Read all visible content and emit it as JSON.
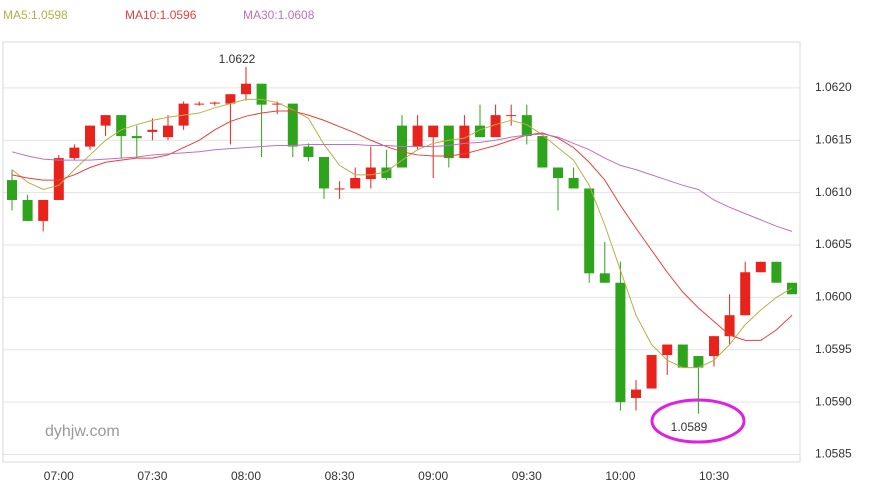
{
  "chart_data": {
    "type": "candlestick",
    "watermark": "dyhjw.com",
    "annotations": [
      "1.0622",
      "1.0589"
    ],
    "up_color": "#e8231b",
    "down_color": "#2ea31c",
    "categories": [
      null,
      null,
      null,
      "07:00",
      null,
      null,
      null,
      null,
      null,
      "07:30",
      null,
      null,
      null,
      null,
      null,
      "08:00",
      null,
      null,
      null,
      null,
      null,
      "08:30",
      null,
      null,
      null,
      null,
      null,
      "09:00",
      null,
      null,
      null,
      null,
      null,
      "09:30",
      null,
      null,
      null,
      null,
      null,
      "10:00",
      null,
      null,
      null,
      null,
      null,
      "10:30",
      null,
      null,
      null,
      null,
      null
    ],
    "open": [
      1.06112,
      1.06093,
      1.06073,
      1.06093,
      1.06133,
      1.06144,
      1.06164,
      1.06174,
      1.06154,
      1.06158,
      1.06153,
      1.06164,
      1.06185,
      1.06185,
      1.06185,
      1.06194,
      1.06204,
      1.06185,
      1.06185,
      1.06144,
      1.06134,
      1.06104,
      1.06104,
      1.06113,
      1.06124,
      1.06164,
      1.06144,
      1.06153,
      1.06164,
      1.06133,
      1.06164,
      1.06153,
      1.06174,
      1.06174,
      1.06154,
      1.06124,
      1.06114,
      1.06104,
      1.06023,
      1.06014,
      1.05904,
      1.05913,
      1.05945,
      1.05955,
      1.05944,
      1.05944,
      1.05963,
      1.05983,
      1.06024,
      1.06034,
      1.06014
    ],
    "high": [
      1.06122,
      1.06098,
      1.06093,
      1.06136,
      1.06146,
      1.06164,
      1.06174,
      1.06174,
      1.06164,
      1.06171,
      1.06174,
      1.06187,
      1.06187,
      1.06187,
      1.06194,
      1.0622,
      1.06204,
      1.06187,
      1.06185,
      1.06147,
      1.06134,
      1.06111,
      1.06124,
      1.06144,
      1.06141,
      1.06174,
      1.06174,
      1.06164,
      1.06164,
      1.06174,
      1.06184,
      1.06184,
      1.06184,
      1.06184,
      1.06154,
      1.06124,
      1.06124,
      1.06104,
      1.06053,
      1.06034,
      1.05921,
      1.05945,
      1.05955,
      1.05955,
      1.05944,
      1.05963,
      1.06003,
      1.06034,
      1.06034,
      1.06034,
      1.06014
    ],
    "low": [
      1.06083,
      1.06073,
      1.06063,
      1.06093,
      1.06131,
      1.06141,
      1.06154,
      1.06133,
      1.06133,
      1.0615,
      1.0615,
      1.0616,
      1.06183,
      1.06183,
      1.06146,
      1.06188,
      1.06134,
      1.06175,
      1.06134,
      1.0613,
      1.06094,
      1.06094,
      1.06104,
      1.06104,
      1.06112,
      1.06124,
      1.06141,
      1.06114,
      1.06124,
      1.06133,
      1.06153,
      1.06153,
      1.06164,
      1.06146,
      1.06124,
      1.06083,
      1.06104,
      1.06014,
      1.06014,
      1.05892,
      1.05892,
      1.05913,
      1.05926,
      1.05933,
      1.05889,
      1.05934,
      1.05955,
      1.05983,
      1.06024,
      1.06014,
      1.06003
    ],
    "close": [
      1.06093,
      1.06073,
      1.06093,
      1.06133,
      1.06143,
      1.06164,
      1.06174,
      1.06154,
      1.06152,
      1.0616,
      1.06164,
      1.06185,
      1.06185,
      1.06186,
      1.06194,
      1.06204,
      1.06184,
      1.06185,
      1.06144,
      1.06134,
      1.06104,
      1.06104,
      1.06114,
      1.06124,
      1.06114,
      1.06124,
      1.06164,
      1.06164,
      1.06133,
      1.06164,
      1.06153,
      1.06174,
      1.06174,
      1.06154,
      1.06124,
      1.06114,
      1.06104,
      1.06023,
      1.06014,
      1.059,
      1.05912,
      1.05945,
      1.05955,
      1.05933,
      1.05933,
      1.05963,
      1.05983,
      1.06024,
      1.06034,
      1.06014,
      1.06003
    ],
    "series": [
      {
        "name": "MA5:1.0598",
        "color": "#b5b04a",
        "values": [
          1.06122,
          1.0611,
          1.06103,
          1.06107,
          1.06122,
          1.06136,
          1.0615,
          1.0616,
          1.06165,
          1.06169,
          1.06172,
          1.06174,
          1.06176,
          1.06181,
          1.06185,
          1.06189,
          1.06189,
          1.06186,
          1.06179,
          1.06171,
          1.06146,
          1.06126,
          1.06117,
          1.06117,
          1.0612,
          1.06131,
          1.06141,
          1.06147,
          1.0615,
          1.06152,
          1.0616,
          1.06165,
          1.06169,
          1.06165,
          1.06155,
          1.06143,
          1.06131,
          1.06107,
          1.06069,
          1.06026,
          1.05983,
          1.05955,
          1.0594,
          1.05933,
          1.05933,
          1.0594,
          1.05955,
          1.05974,
          1.05988,
          1.06,
          1.06009
        ]
      },
      {
        "name": "MA10:1.0596",
        "color": "#e8403a",
        "values": [
          1.06117,
          1.06114,
          1.06112,
          1.06112,
          1.06117,
          1.06124,
          1.06129,
          1.06131,
          1.06133,
          1.06133,
          1.06136,
          1.06143,
          1.0615,
          1.0616,
          1.06168,
          1.06173,
          1.06176,
          1.06178,
          1.06178,
          1.06174,
          1.06169,
          1.06163,
          1.06157,
          1.0615,
          1.06144,
          1.06139,
          1.06136,
          1.06135,
          1.06135,
          1.06137,
          1.06141,
          1.06145,
          1.0615,
          1.06155,
          1.06157,
          1.06152,
          1.06143,
          1.06129,
          1.06112,
          1.06088,
          1.06066,
          1.06045,
          1.06024,
          1.06005,
          1.0599,
          1.05977,
          1.05964,
          1.05959,
          1.05959,
          1.05969,
          1.05983
        ]
      },
      {
        "name": "MA30:1.0608",
        "color": "#c070c0",
        "values": [
          1.06139,
          1.06135,
          1.06132,
          1.06131,
          1.06131,
          1.06131,
          1.06132,
          1.06133,
          1.06134,
          1.06136,
          1.06137,
          1.06138,
          1.06139,
          1.06141,
          1.06142,
          1.06143,
          1.06144,
          1.06145,
          1.06145,
          1.06146,
          1.06146,
          1.06146,
          1.06146,
          1.06145,
          1.06145,
          1.06144,
          1.06144,
          1.06144,
          1.06145,
          1.06147,
          1.06148,
          1.0615,
          1.06153,
          1.06155,
          1.06156,
          1.06153,
          1.06147,
          1.06141,
          1.06133,
          1.06126,
          1.06122,
          1.06117,
          1.06112,
          1.06107,
          1.06103,
          1.06093,
          1.06086,
          1.0608,
          1.06074,
          1.06068,
          1.06063
        ]
      }
    ],
    "ylim": [
      1.0584,
      1.0624
    ],
    "yticks": [
      {
        "value": 1.062,
        "label": "1.0620"
      },
      {
        "value": 1.0615,
        "label": "1.0615"
      },
      {
        "value": 1.061,
        "label": "1.0610"
      },
      {
        "value": 1.0605,
        "label": "1.0605"
      },
      {
        "value": 1.06,
        "label": "1.0600"
      },
      {
        "value": 1.0595,
        "label": "1.0595"
      },
      {
        "value": 1.059,
        "label": "1.0590"
      },
      {
        "value": 1.0585,
        "label": "1.0585"
      }
    ],
    "grid": true
  }
}
